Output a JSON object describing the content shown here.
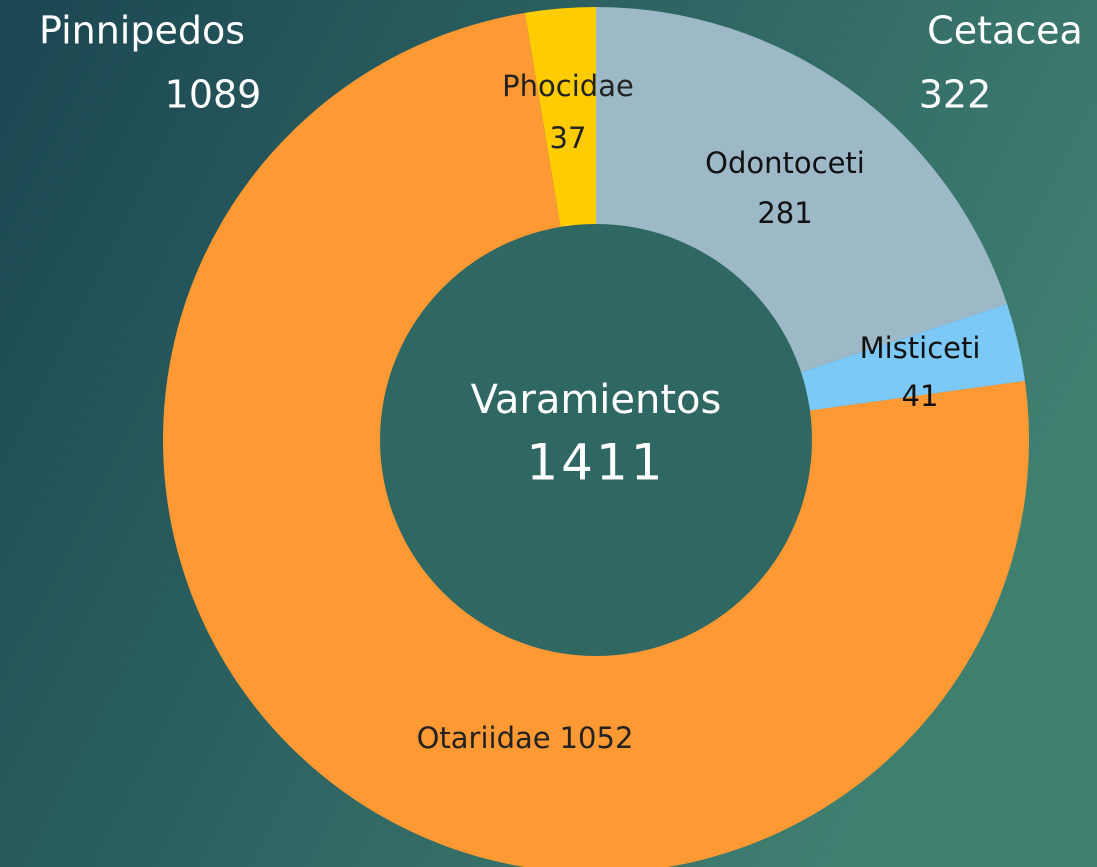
{
  "chart_data": {
    "type": "donut",
    "categories": [
      "Odontoceti",
      "Misticeti",
      "Otariidae",
      "Phocidae"
    ],
    "values": [
      281,
      41,
      1052,
      37
    ],
    "colors": [
      "#9db9c8",
      "#7cc8f7",
      "#ff9933",
      "#ffcc00"
    ],
    "center": {
      "label": "Varamientos",
      "value": 1411
    },
    "groups": [
      {
        "name": "Pinnipedos",
        "value": 1089
      },
      {
        "name": "Cetacea",
        "value": 322
      }
    ]
  }
}
